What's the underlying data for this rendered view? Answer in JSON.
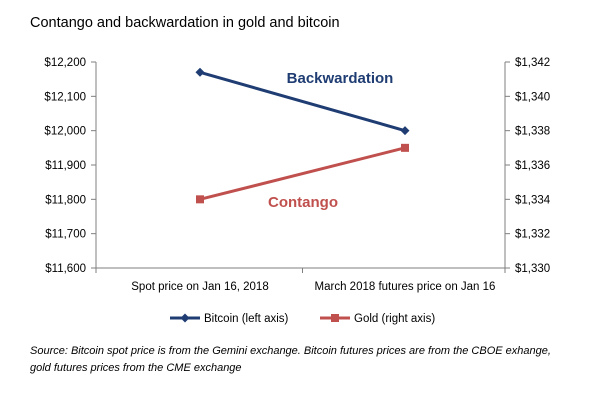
{
  "title": "Contango and backwardation in gold and bitcoin",
  "source_note": "Source: Bitcoin spot price is from the Gemini exchange. Bitcoin futures prices are from the CBOE exhange, gold futures prices from the CME exchange",
  "chart_data": {
    "type": "line",
    "categories": [
      "Spot price on Jan 16, 2018",
      "March 2018 futures price on Jan 16"
    ],
    "series": [
      {
        "name": "Bitcoin (left axis)",
        "axis": "left",
        "values": [
          12170,
          12000
        ],
        "color": "#1f3d73",
        "marker": "diamond"
      },
      {
        "name": "Gold (right axis)",
        "axis": "right",
        "values": [
          1334,
          1337
        ],
        "color": "#c0504d",
        "marker": "square"
      }
    ],
    "left_axis": {
      "ylim": [
        11600,
        12200
      ],
      "step": 100,
      "tick_labels": [
        "$11,600",
        "$11,700",
        "$11,800",
        "$11,900",
        "$12,000",
        "$12,100",
        "$12,200"
      ]
    },
    "right_axis": {
      "ylim": [
        1330,
        1342
      ],
      "step": 2,
      "tick_labels": [
        "$1,330",
        "$1,332",
        "$1,334",
        "$1,336",
        "$1,338",
        "$1,340",
        "$1,342"
      ]
    },
    "annotations": [
      {
        "text": "Backwardation",
        "color": "#1f3d73"
      },
      {
        "text": "Contango",
        "color": "#c0504d"
      }
    ],
    "legend_position": "bottom",
    "grid": false
  }
}
